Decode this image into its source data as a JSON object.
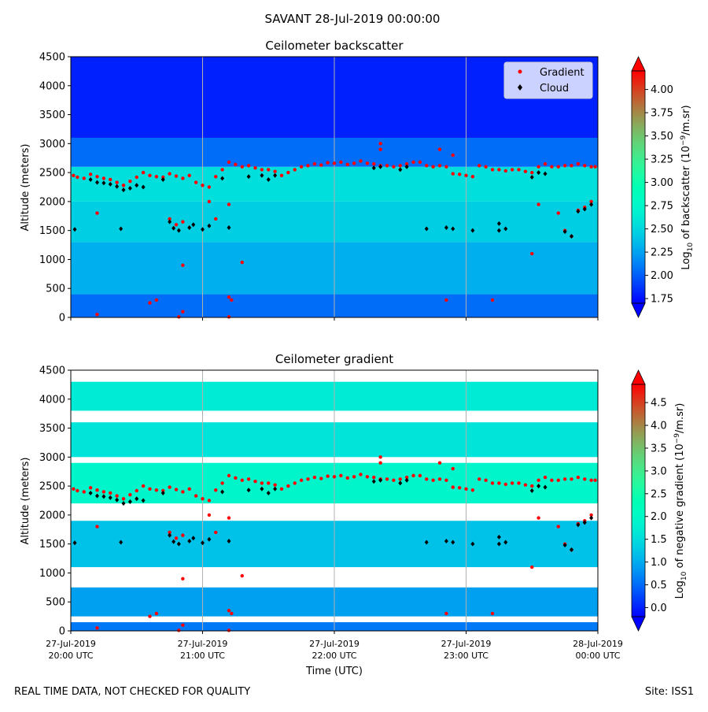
{
  "figure": {
    "suptitle": "SAVANT 28-Jul-2019 00:00:00",
    "footer_left": "REAL TIME DATA, NOT CHECKED FOR QUALITY",
    "footer_right": "Site: ISS1"
  },
  "chart_data": [
    {
      "type": "heatmap",
      "title": "Ceilometer backscatter",
      "ylabel": "Altitude (meters)",
      "xlabel": "",
      "ylim": [
        0,
        4500
      ],
      "yticks": [
        0,
        500,
        1000,
        1500,
        2000,
        2500,
        3000,
        3500,
        4000,
        4500
      ],
      "colorbar": {
        "label": "Log10 of backscatter (10^-9/m.sr)",
        "label_parts": [
          "Log",
          "10",
          " of backscatter (10",
          "−9",
          "/m.sr)"
        ],
        "range": [
          1.7,
          4.2
        ],
        "ticks": [
          1.75,
          2.0,
          2.25,
          2.5,
          2.75,
          3.0,
          3.25,
          3.5,
          3.75,
          4.0
        ],
        "tick_labels": [
          "1.75",
          "2.00",
          "2.25",
          "2.50",
          "2.75",
          "3.00",
          "3.25",
          "3.50",
          "3.75",
          "4.00"
        ],
        "extend": "both"
      },
      "legend": {
        "location": "top-right",
        "entries": [
          {
            "label": "Gradient",
            "color": "#ff0000",
            "marker": "circle"
          },
          {
            "label": "Cloud",
            "color": "#000000",
            "marker": "diamond"
          }
        ]
      },
      "field_bands": [
        {
          "y0": 0,
          "y1": 400,
          "value": 2.05
        },
        {
          "y0": 400,
          "y1": 1300,
          "value": 2.3
        },
        {
          "y0": 1300,
          "y1": 2000,
          "value": 2.45
        },
        {
          "y0": 2000,
          "y1": 2600,
          "value": 2.55
        },
        {
          "y0": 2600,
          "y1": 3100,
          "value": 2.05
        },
        {
          "y0": 3100,
          "y1": 4500,
          "value": 1.8
        }
      ]
    },
    {
      "type": "heatmap",
      "title": "Ceilometer gradient",
      "ylabel": "Altitude (meters)",
      "xlabel": "Time (UTC)",
      "ylim": [
        0,
        4500
      ],
      "yticks": [
        0,
        500,
        1000,
        1500,
        2000,
        2500,
        3000,
        3500,
        4000,
        4500
      ],
      "colorbar": {
        "label": "Log10 of negative gradient (10^-9/m.sr)",
        "label_parts": [
          "Log",
          "10",
          " of negative gradient (10",
          "−9",
          "/m.sr)"
        ],
        "range": [
          -0.2,
          4.9
        ],
        "ticks": [
          0.0,
          0.5,
          1.0,
          1.5,
          2.0,
          2.5,
          3.0,
          3.5,
          4.0,
          4.5
        ],
        "tick_labels": [
          "0.0",
          "0.5",
          "1.0",
          "1.5",
          "2.0",
          "2.5",
          "3.0",
          "3.5",
          "4.0",
          "4.5"
        ],
        "extend": "both"
      },
      "field_bands": [
        {
          "y0": 0,
          "y1": 150,
          "value": 0.6
        },
        {
          "y0": 250,
          "y1": 750,
          "value": 0.9
        },
        {
          "y0": 1100,
          "y1": 1900,
          "value": 1.2
        },
        {
          "y0": 2200,
          "y1": 2900,
          "value": 1.9
        },
        {
          "y0": 3000,
          "y1": 3600,
          "value": 1.6
        },
        {
          "y0": 3800,
          "y1": 4300,
          "value": 1.7
        }
      ]
    }
  ],
  "x_axis": {
    "range_hours": [
      0,
      4
    ],
    "ticks": [
      {
        "t": 0,
        "date": "27-Jul-2019",
        "time": "20:00 UTC"
      },
      {
        "t": 1,
        "date": "27-Jul-2019",
        "time": "21:00 UTC"
      },
      {
        "t": 2,
        "date": "27-Jul-2019",
        "time": "22:00 UTC"
      },
      {
        "t": 3,
        "date": "27-Jul-2019",
        "time": "23:00 UTC"
      },
      {
        "t": 4,
        "date": "28-Jul-2019",
        "time": "00:00 UTC"
      }
    ]
  },
  "series_overlay": {
    "gradient_points": [
      [
        0.02,
        2450
      ],
      [
        0.05,
        2420
      ],
      [
        0.1,
        2400
      ],
      [
        0.15,
        2470
      ],
      [
        0.2,
        2430
      ],
      [
        0.25,
        2400
      ],
      [
        0.3,
        2380
      ],
      [
        0.35,
        2330
      ],
      [
        0.4,
        2280
      ],
      [
        0.45,
        2350
      ],
      [
        0.5,
        2420
      ],
      [
        0.55,
        2500
      ],
      [
        0.6,
        2450
      ],
      [
        0.65,
        2430
      ],
      [
        0.7,
        2420
      ],
      [
        0.75,
        2480
      ],
      [
        0.8,
        2440
      ],
      [
        0.85,
        2400
      ],
      [
        0.9,
        2450
      ],
      [
        0.95,
        2330
      ],
      [
        1.0,
        2280
      ],
      [
        1.05,
        2250
      ],
      [
        1.1,
        2430
      ],
      [
        1.15,
        2550
      ],
      [
        1.2,
        2680
      ],
      [
        1.25,
        2640
      ],
      [
        1.3,
        2600
      ],
      [
        1.35,
        2620
      ],
      [
        1.4,
        2580
      ],
      [
        1.45,
        2550
      ],
      [
        1.5,
        2550
      ],
      [
        1.55,
        2520
      ],
      [
        1.6,
        2450
      ],
      [
        1.65,
        2500
      ],
      [
        1.7,
        2550
      ],
      [
        1.75,
        2600
      ],
      [
        1.8,
        2620
      ],
      [
        1.85,
        2650
      ],
      [
        1.9,
        2630
      ],
      [
        1.95,
        2670
      ],
      [
        2.0,
        2660
      ],
      [
        2.05,
        2680
      ],
      [
        2.1,
        2640
      ],
      [
        2.15,
        2660
      ],
      [
        2.2,
        2700
      ],
      [
        2.25,
        2660
      ],
      [
        2.3,
        2650
      ],
      [
        2.35,
        2620
      ],
      [
        2.4,
        2620
      ],
      [
        2.45,
        2600
      ],
      [
        2.5,
        2620
      ],
      [
        2.55,
        2650
      ],
      [
        2.6,
        2680
      ],
      [
        2.65,
        2680
      ],
      [
        2.7,
        2620
      ],
      [
        2.75,
        2600
      ],
      [
        2.8,
        2620
      ],
      [
        2.85,
        2600
      ],
      [
        2.9,
        2480
      ],
      [
        2.95,
        2470
      ],
      [
        3.0,
        2450
      ],
      [
        3.05,
        2430
      ],
      [
        3.1,
        2620
      ],
      [
        3.15,
        2600
      ],
      [
        3.2,
        2550
      ],
      [
        3.25,
        2550
      ],
      [
        3.3,
        2530
      ],
      [
        3.35,
        2550
      ],
      [
        3.4,
        2550
      ],
      [
        3.45,
        2520
      ],
      [
        3.5,
        2500
      ],
      [
        3.55,
        2600
      ],
      [
        3.6,
        2650
      ],
      [
        3.65,
        2600
      ],
      [
        3.7,
        2600
      ],
      [
        3.75,
        2620
      ],
      [
        3.8,
        2620
      ],
      [
        3.85,
        2650
      ],
      [
        3.9,
        2620
      ],
      [
        3.95,
        2600
      ],
      [
        3.98,
        2600
      ],
      [
        0.2,
        1800
      ],
      [
        0.75,
        1700
      ],
      [
        0.85,
        1650
      ],
      [
        0.8,
        1600
      ],
      [
        1.1,
        1700
      ],
      [
        1.05,
        2000
      ],
      [
        1.2,
        1950
      ],
      [
        3.55,
        1950
      ],
      [
        3.7,
        1800
      ],
      [
        3.75,
        1500
      ],
      [
        3.8,
        1400
      ],
      [
        3.85,
        1850
      ],
      [
        3.9,
        1900
      ],
      [
        3.95,
        2000
      ],
      [
        2.35,
        2900
      ],
      [
        2.35,
        3000
      ],
      [
        2.8,
        2900
      ],
      [
        2.9,
        2800
      ],
      [
        0.6,
        250
      ],
      [
        0.65,
        300
      ],
      [
        0.85,
        100
      ],
      [
        1.2,
        350
      ],
      [
        1.22,
        300
      ],
      [
        1.3,
        950
      ],
      [
        0.85,
        900
      ],
      [
        0.2,
        50
      ],
      [
        0.82,
        10
      ],
      [
        1.2,
        10
      ],
      [
        2.85,
        300
      ],
      [
        3.2,
        300
      ],
      [
        3.5,
        1100
      ]
    ],
    "cloud_points": [
      [
        0.03,
        1520
      ],
      [
        0.15,
        2380
      ],
      [
        0.2,
        2330
      ],
      [
        0.25,
        2320
      ],
      [
        0.3,
        2300
      ],
      [
        0.35,
        2260
      ],
      [
        0.4,
        2200
      ],
      [
        0.45,
        2230
      ],
      [
        0.5,
        2280
      ],
      [
        0.55,
        2250
      ],
      [
        0.7,
        2380
      ],
      [
        0.75,
        1650
      ],
      [
        0.78,
        1540
      ],
      [
        0.82,
        1500
      ],
      [
        0.9,
        1550
      ],
      [
        0.93,
        1600
      ],
      [
        1.0,
        1520
      ],
      [
        1.05,
        1580
      ],
      [
        1.15,
        2400
      ],
      [
        1.2,
        1550
      ],
      [
        1.35,
        2430
      ],
      [
        1.45,
        2450
      ],
      [
        1.5,
        2380
      ],
      [
        1.55,
        2450
      ],
      [
        0.38,
        1530
      ],
      [
        2.3,
        2580
      ],
      [
        2.35,
        2600
      ],
      [
        2.5,
        2550
      ],
      [
        2.55,
        2600
      ],
      [
        2.7,
        1530
      ],
      [
        2.85,
        1550
      ],
      [
        2.9,
        1530
      ],
      [
        3.05,
        1500
      ],
      [
        3.25,
        1500
      ],
      [
        3.3,
        1530
      ],
      [
        3.5,
        2420
      ],
      [
        3.55,
        2500
      ],
      [
        3.6,
        2480
      ],
      [
        3.75,
        1480
      ],
      [
        3.8,
        1400
      ],
      [
        3.85,
        1830
      ],
      [
        3.9,
        1870
      ],
      [
        3.95,
        1950
      ],
      [
        3.25,
        1620
      ]
    ]
  }
}
